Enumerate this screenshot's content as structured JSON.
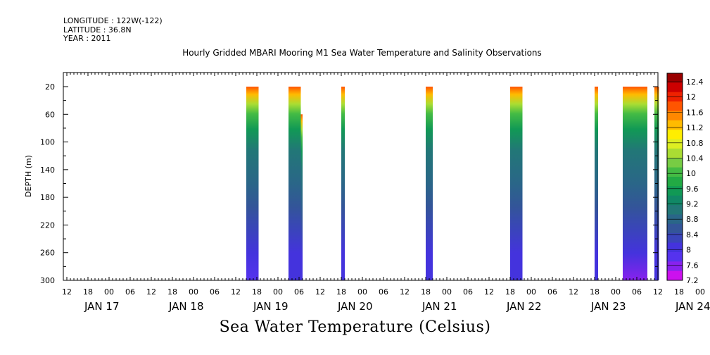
{
  "meta": {
    "longitude": "LONGITUDE : 122W(-122)",
    "latitude": "LATITUDE : 36.8N",
    "year": "YEAR : 2011"
  },
  "chart_data": {
    "type": "heatmap",
    "title": "Hourly Gridded MBARI Mooring M1 Sea Water Temperature and Salinity Observations",
    "subtitle": "Sea Water Temperature (Celsius)",
    "ylabel": "DEPTH (m)",
    "xlabel": "",
    "ylim": [
      300,
      20
    ],
    "y_ticks": [
      20,
      60,
      100,
      140,
      180,
      220,
      260,
      300
    ],
    "x_hour_ticks": [
      "12",
      "18",
      "00",
      "06",
      "12",
      "18",
      "00",
      "06",
      "12",
      "18",
      "00",
      "06",
      "12",
      "18",
      "00",
      "06",
      "12",
      "18",
      "00",
      "06",
      "12",
      "18",
      "00",
      "06",
      "12",
      "18",
      "00",
      "06",
      "12",
      "18",
      "00",
      "06",
      "12"
    ],
    "x_date_labels": [
      "JAN 17",
      "JAN 18",
      "JAN 19",
      "JAN 20",
      "JAN 21",
      "JAN 22",
      "JAN 23",
      "JAN 24"
    ],
    "colorbar": {
      "levels": [
        "12.4",
        "12",
        "11.6",
        "11.2",
        "10.8",
        "10.4",
        "10",
        "9.6",
        "9.2",
        "8.8",
        "8.4",
        "8",
        "7.6",
        "7.2"
      ],
      "colors": [
        "#990000",
        "#cc0000",
        "#ee2200",
        "#ff5500",
        "#ff8800",
        "#ffbb00",
        "#ffee00",
        "#ddee22",
        "#aadd33",
        "#77cc44",
        "#44bb44",
        "#22aa44",
        "#119955",
        "#118866",
        "#227777",
        "#2a6688",
        "#335599",
        "#3a44bb",
        "#4433dd",
        "#5533ee",
        "#8822ee",
        "#cc11ee"
      ]
    },
    "observation_blocks": [
      {
        "start_hour": 51,
        "end_hour": 54.5,
        "max_depth": 300,
        "min_temp": 7.8
      },
      {
        "start_hour": 63,
        "end_hour": 66.5,
        "max_depth": 300,
        "min_temp": 7.9,
        "shallow_gap": [
          66.5,
          67,
          60
        ]
      },
      {
        "start_hour": 78,
        "end_hour": 79,
        "max_depth": 300,
        "min_temp": 8.0
      },
      {
        "start_hour": 102,
        "end_hour": 104,
        "max_depth": 300,
        "min_temp": 8.0
      },
      {
        "start_hour": 126,
        "end_hour": 129.5,
        "max_depth": 300,
        "min_temp": 7.9
      },
      {
        "start_hour": 150,
        "end_hour": 151,
        "max_depth": 300,
        "min_temp": 8.0
      },
      {
        "start_hour": 158,
        "end_hour": 165,
        "max_depth": 300,
        "min_temp": 7.4
      },
      {
        "start_hour": 167,
        "end_hour": 168.3,
        "max_depth": 300,
        "min_temp": 7.9
      },
      {
        "start_hour": 171,
        "end_hour": 174.5,
        "max_depth": 300,
        "min_temp": 7.9
      },
      {
        "start_hour": 197,
        "end_hour": 199,
        "max_depth": 300,
        "min_temp": 7.9
      }
    ]
  }
}
